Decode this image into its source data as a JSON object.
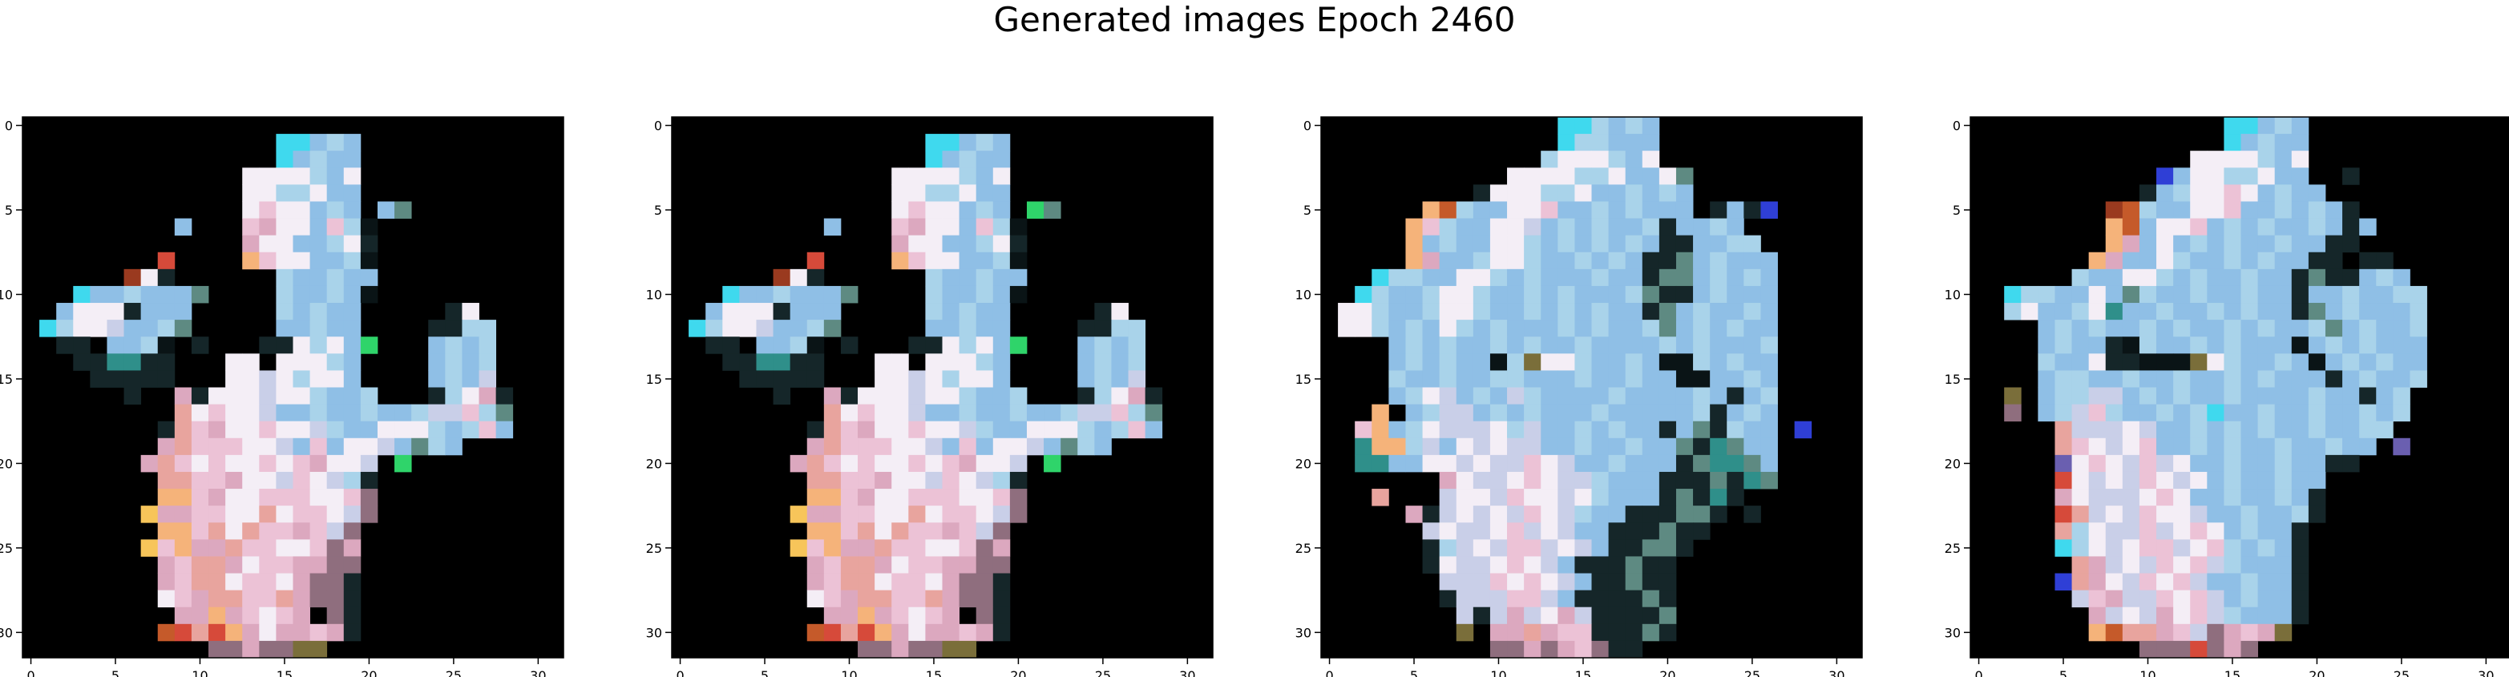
{
  "figure": {
    "title": "Generated images Epoch 2460"
  },
  "chart_data": [
    {
      "type": "heatmap",
      "title": "",
      "xlabel": "",
      "ylabel": "",
      "xlim": [
        -0.5,
        31.5
      ],
      "ylim": [
        31.5,
        -0.5
      ],
      "xticks": [
        0,
        5,
        10,
        15,
        20,
        25,
        30
      ],
      "yticks": [
        0,
        5,
        10,
        15,
        20,
        25,
        30
      ],
      "grid": false,
      "background": "#000000",
      "palette": {
        "c": "#3fd9ee",
        "k": "#a9d3ea",
        "b": "#8fbfe6",
        "w": "#f4eef6",
        "p": "#ecc2d6",
        "q": "#dca8bf",
        "l": "#c9cfe8",
        "r": "#e8a49e",
        "o": "#f5b37a",
        "y": "#f7c55a",
        "g": "#5e8a82",
        "t": "#2f8f8a",
        "d": "#152629",
        "n": "#0a1416",
        "m": "#8f6e7e",
        "e": "#2fd46a",
        "u": "#2f3fd6",
        "x": "#d64a3a",
        "z": "#9a3a1f",
        "v": "#6a5fb0",
        "h": "#c55a2a",
        "a": "#7a6e3a"
      },
      "rows": [
        "................................",
        "...............ccbkb............",
        "...............cbkbb............",
        ".............wwwwkbw............",
        ".............wwkkwbb............",
        ".............wpwwbkb.bg.........",
        ".........b...pqwwbpkn...........",
        ".............qwwbbkwd...........",
        "........x....opwwbbkn...........",
        "......zwd......kbbkbb...........",
        "...cbbkbbbg....kbbkbn...........",
        "..bwwwdbbb.....kbkbb.....dw.....",
        ".ckwwlbbkg.....bbkbb....ddkk....",
        "..dd.bbkn.d...ddwkwbe...bkbk....",
        "...ddttdd...ww.wwwkb....bkbk....",
        "....ddddd...wwlwkwwb....bkbl....",
        "......d..qdwwwlwwkbbk...dkwqd...",
        ".........rwpwwlbbkbbkbbkllpkg...",
        "........drpqwwpwwlkbbwwwkbkpb...",
        "........qrpppwwlbpbwwlbgkb......",
        ".......qrpwpwwpwpqwwl.e.........",
        "........rrppqwwlpwlkd...........",
        "........oopqwwpppwwpm...........",
        ".......yqqppwwrwppwlm...........",
        "........ooprwrppqplm............",
        ".......ypoqqrppwwpmq............",
        "........qprrqwppqqmm............",
        "........qprrwppwqmmd............",
        "........wpqrrpprqmmd............",
        ".........qqoqpwpq.md............",
        "........hxrxoqwqqpqd............",
        "...........mmqmmaa.............."
      ]
    },
    {
      "type": "heatmap",
      "title": "",
      "xlabel": "",
      "ylabel": "",
      "xlim": [
        -0.5,
        31.5
      ],
      "ylim": [
        31.5,
        -0.5
      ],
      "xticks": [
        0,
        5,
        10,
        15,
        20,
        25,
        30
      ],
      "yticks": [
        0,
        5,
        10,
        15,
        20,
        25,
        30
      ],
      "grid": false,
      "background": "#000000",
      "palette": {
        "c": "#3fd9ee",
        "k": "#a9d3ea",
        "b": "#8fbfe6",
        "w": "#f4eef6",
        "p": "#ecc2d6",
        "q": "#dca8bf",
        "l": "#c9cfe8",
        "r": "#e8a49e",
        "o": "#f5b37a",
        "y": "#f7c55a",
        "g": "#5e8a82",
        "t": "#2f8f8a",
        "d": "#152629",
        "n": "#0a1416",
        "m": "#8f6e7e",
        "e": "#2fd46a",
        "u": "#2f3fd6",
        "x": "#d64a3a",
        "z": "#9a3a1f",
        "v": "#6a5fb0",
        "h": "#c55a2a",
        "a": "#7a6e3a"
      },
      "rows": [
        "................................",
        "...............ccbkb............",
        "...............cbkbb............",
        ".............wwwwkbw............",
        ".............wwkkwbb............",
        ".............wpwwbkb.eg.........",
        ".........b...pqwwbpkn...........",
        ".............qwwbbkwd...........",
        "........x....opwwbbkn...........",
        "......zwd......kbbkbb...........",
        "...cbbkbbbg....kbbkbn...........",
        "..bwwwdbbb.....kbkbb.....dw.....",
        ".ckwwlbbkg.....bbkbb....ddkk....",
        "..dd.bbkn.d...ddwkwbe...bkbk....",
        "...ddttdd...ww.wwwkb....bkbk....",
        "....ddddd...wwlwkwwb....bkbl....",
        "......d..qdwwwlwwkbbk...dkwqd...",
        ".........rwpwwlbbkbbkbbkllpkg...",
        "........drpqwwpwwlkbbwwwkbkpb...",
        "........qrpppwwlbpbwwlbgkb......",
        ".......qrpwpwwpwpqwwl.e.........",
        "........rrppqwwlpwlkd...........",
        "........oopqwwpppwwpm...........",
        ".......yqqppwwrwppwlm...........",
        "........ooprwrppqplm............",
        ".......ypoqqrppwwpmq............",
        "........qprrqwppqqmm............",
        "........qprrwppwqmmd............",
        "........wpqrrpprqmmd............",
        ".........qqoqpwpq.md............",
        "........hxrxoqwqqpqd............",
        "...........mmqmmaa.............."
      ]
    },
    {
      "type": "heatmap",
      "title": "",
      "xlabel": "",
      "ylabel": "",
      "xlim": [
        -0.5,
        31.5
      ],
      "ylim": [
        31.5,
        -0.5
      ],
      "xticks": [
        0,
        5,
        10,
        15,
        20,
        25,
        30
      ],
      "yticks": [
        0,
        5,
        10,
        15,
        20,
        25,
        30
      ],
      "grid": false,
      "background": "#000000",
      "palette": {
        "c": "#3fd9ee",
        "k": "#a9d3ea",
        "b": "#8fbfe6",
        "w": "#f4eef6",
        "p": "#ecc2d6",
        "q": "#dca8bf",
        "l": "#c9cfe8",
        "r": "#e8a49e",
        "o": "#f5b37a",
        "y": "#f7c55a",
        "g": "#5e8a82",
        "t": "#2f8f8a",
        "d": "#152629",
        "n": "#0a1416",
        "m": "#8f6e7e",
        "e": "#2fd46a",
        "u": "#2f3fd6",
        "x": "#d64a3a",
        "z": "#9a3a1f",
        "v": "#6a5fb0",
        "h": "#c55a2a",
        "a": "#7a6e3a"
      },
      "rows": [
        "..............cckbkb............",
        "..............ckkbbb............",
        ".............kwwwkbw............",
        "...........wwwwkkwbbwg..........",
        ".........dwwwkkwbbkbkb..........",
        "......ohkbbwwpbbkbkbbb.dbdu.....",
        ".....opkbbwwlbkbkbbkdbbkb.......",
        ".....obkbbwwkbkbkbkbddbbkk......",
        ".....oqbbkwwkbbkbkbddgbkbbb.....",
        "...ckkbbwwkbkbbbkbbdggbkbkb.....",
        "..ckbbkwwkbbkbkbbbkgddbkbbb.....",
        ".wwkbbkwwkbbkbkbkbbdgbkbbkb.....",
        ".wwkbkbwkbkbbbkbkbbkgbkbkbb.....",
        "....bkbkbbkbkbbkbbbbkbkbbbk.....",
        "....bkbkbbnkawwkbbkbnnkbkbb.....",
        "....kbbkbbkkbbbkbbkbbnnbbkb.....",
        "....bkwlbkblkbbbbkbbbbkbdbk.....",
        "...o.bkllbkbkbbbkbbbbbkdbkb.....",
        "..pobkwlllwklbbkbkbbdbgdkbb.u...",
        "..tooklbwlwllbbkbbkbbgdtgbb.....",
        "..ttbbwwlwllpwlbbkbbbdgttgb.....",
        ".......qwllwpwllkbbbdddgdtg.....",
        "...r...lwwlpwwlwkbbbdgdtd.......",
        ".....qdlwlwlpwlkbbdddggd.d......",
        "......lwllwplwlbbdddgdd.........",
        "......dklwlpplwlbddggd..........",
        "......dwllwpwlbdddgdd...........",
        ".......lllpwpwlbddgdd...........",
        ".......dlllpplbddddgd...........",
        "........ldlqlwqlddddg...........",
        "........a.qqrqppdddgd...........",
        "..........mmqmqpmdd............."
      ]
    },
    {
      "type": "heatmap",
      "title": "",
      "xlabel": "",
      "ylabel": "",
      "xlim": [
        -0.5,
        31.5
      ],
      "ylim": [
        31.5,
        -0.5
      ],
      "xticks": [
        0,
        5,
        10,
        15,
        20,
        25,
        30
      ],
      "yticks": [
        0,
        5,
        10,
        15,
        20,
        25,
        30
      ],
      "grid": false,
      "background": "#000000",
      "palette": {
        "c": "#3fd9ee",
        "k": "#a9d3ea",
        "b": "#8fbfe6",
        "w": "#f4eef6",
        "p": "#ecc2d6",
        "q": "#dca8bf",
        "l": "#c9cfe8",
        "r": "#e8a49e",
        "o": "#f5b37a",
        "y": "#f7c55a",
        "g": "#5e8a82",
        "t": "#2f8f8a",
        "d": "#152629",
        "n": "#0a1416",
        "m": "#8f6e7e",
        "e": "#2fd46a",
        "u": "#2f3fd6",
        "x": "#d64a3a",
        "z": "#9a3a1f",
        "v": "#6a5fb0",
        "h": "#c55a2a",
        "a": "#7a6e3a"
      },
      "rows": [
        "...............ccbkb............",
        "...............cbkbb............",
        ".............wwwwkbw............",
        "...........ubwwkkwbb..d.........",
        "..........dbkwwpwbkbb...........",
        "........zhkbbwwpbbkbkbd.........",
        "........ohbwwpbkbkbbkbdb........",
        "........oqbwbkbkbbkbbdd.........",
        ".......oqbbwkbbkbkbbdd.dd.......",
        "......kbbwwkbkbbkbbdgddbkb......",
        "..ckkbbwbgkbbkbbkbbdbbkbbkk.....",
        "..kwbbkwtbbkbbkbkbbdgbkbbbk.....",
        "....bkbkbbkbkbbkbkbbkgbkbbk.....",
        "....bkbbdnkbbkbkbbbnbkbkbbb.....",
        "....kbbwddnnnawkbbkbnbkbkbb.....",
        "....bkkbbkbbkbbkbkbbbdbkbbk.....",
        "..a.bkkllbkbkbbkbbbbkbbdbk......",
        "..m.bklpkbbkbkcbbkbbkbbkbk......",
        ".....rlllwlbbkbkbkbbkbbkk.......",
        ".....rpwlwpbbkbkbbkbbkbb.v......",
        ".....vwpwlplwbbkbbkbbdd.........",
        ".....xwlwlpwlwbkbbkbb...........",
        ".....qwlllwpwbbkbbkbd...........",
        ".....xrlwlpwwlbbkbbkd...........",
        ".....rkwllplwpwbkbbd............",
        ".....ckwlwpplwpkbkbd............",
        "......rqlwlpwplkbbbd............",
        ".....urqwlpwplbbkbbd............",
        "......lpqllpwplbkbbd............",
        ".......qlwlqwplkbbbd............",
        ".......ohrrqplmqpqa.............",
        "..........mmmxmqm..............."
      ]
    }
  ]
}
